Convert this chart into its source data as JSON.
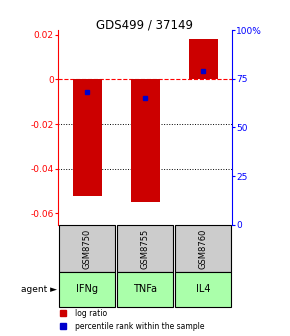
{
  "title": "GDS499 / 37149",
  "samples": [
    "GSM8750",
    "GSM8755",
    "GSM8760"
  ],
  "agents": [
    "IFNg",
    "TNFa",
    "IL4"
  ],
  "log_ratios": [
    -0.052,
    -0.055,
    0.018
  ],
  "percentile_ranks": [
    68,
    65,
    79
  ],
  "bar_color": "#cc0000",
  "blue_color": "#0000cc",
  "ylim_left": [
    -0.065,
    0.022
  ],
  "ylim_right": [
    0,
    100
  ],
  "yticks_left": [
    0.02,
    0.0,
    -0.02,
    -0.04,
    -0.06
  ],
  "ytick_labels_left": [
    "0.02",
    "0",
    "-0.02",
    "-0.04",
    "-0.06"
  ],
  "yticks_right": [
    100,
    75,
    50,
    25,
    0
  ],
  "ytick_labels_right": [
    "100%",
    "75",
    "50",
    "25",
    "0"
  ],
  "sample_bg": "#cccccc",
  "agent_color": "#aaffaa",
  "bar_width": 0.5,
  "legend_items": [
    "log ratio",
    "percentile rank within the sample"
  ],
  "legend_colors": [
    "#cc0000",
    "#0000cc"
  ]
}
